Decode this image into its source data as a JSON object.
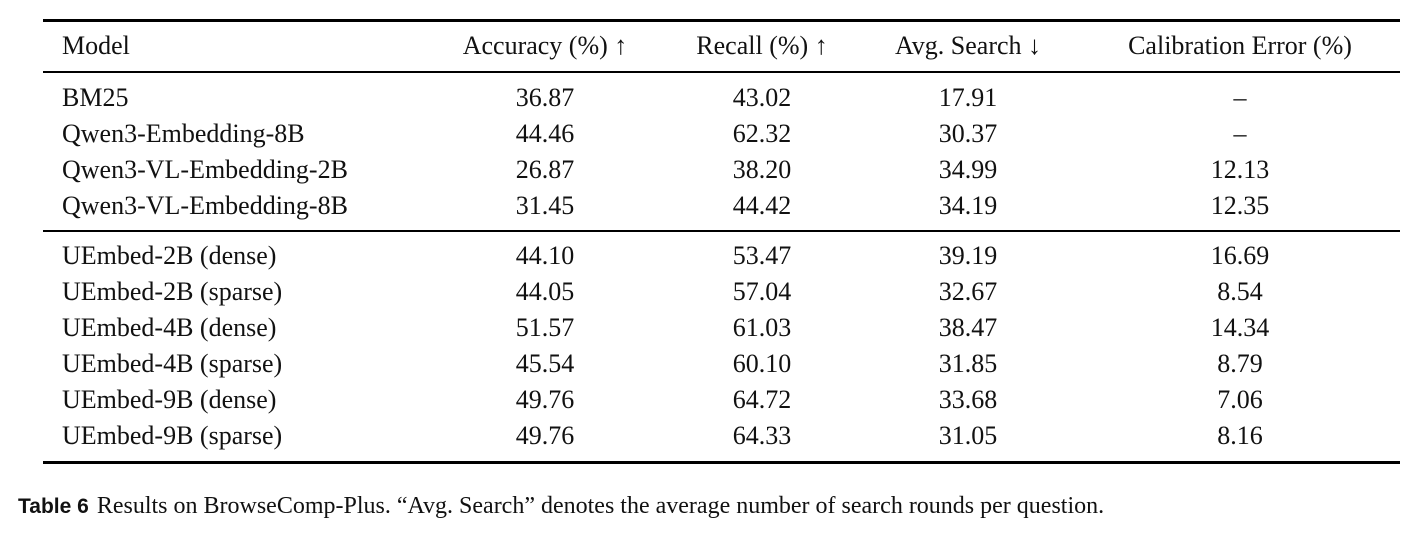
{
  "table": {
    "header": [
      "Model",
      "Accuracy (%) ↑",
      "Recall (%) ↑",
      "Avg. Search ↓",
      "Calibration Error (%)"
    ],
    "groups": [
      [
        [
          "BM25",
          "36.87",
          "43.02",
          "17.91",
          "–"
        ],
        [
          "Qwen3-Embedding-8B",
          "44.46",
          "62.32",
          "30.37",
          "–"
        ],
        [
          "Qwen3-VL-Embedding-2B",
          "26.87",
          "38.20",
          "34.99",
          "12.13"
        ],
        [
          "Qwen3-VL-Embedding-8B",
          "31.45",
          "44.42",
          "34.19",
          "12.35"
        ]
      ],
      [
        [
          "UEmbed-2B (dense)",
          "44.10",
          "53.47",
          "39.19",
          "16.69"
        ],
        [
          "UEmbed-2B (sparse)",
          "44.05",
          "57.04",
          "32.67",
          "8.54"
        ],
        [
          "UEmbed-4B (dense)",
          "51.57",
          "61.03",
          "38.47",
          "14.34"
        ],
        [
          "UEmbed-4B (sparse)",
          "45.54",
          "60.10",
          "31.85",
          "8.79"
        ],
        [
          "UEmbed-9B (dense)",
          "49.76",
          "64.72",
          "33.68",
          "7.06"
        ],
        [
          "UEmbed-9B (sparse)",
          "49.76",
          "64.33",
          "31.05",
          "8.16"
        ]
      ]
    ]
  },
  "caption": {
    "label": "Table 6",
    "text": "Results on BrowseComp-Plus. “Avg. Search” denotes the average number of search rounds per question."
  }
}
